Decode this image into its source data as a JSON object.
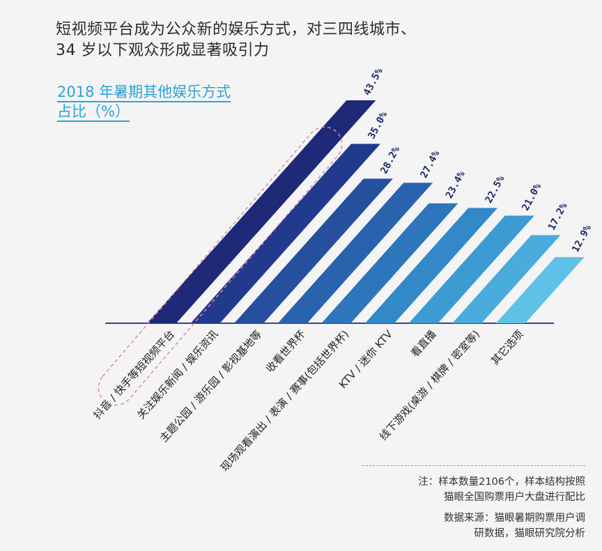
{
  "headline": {
    "line1": "短视频平台成为公众新的娱乐方式，对三四线城市、",
    "line2": "34 岁以下观众形成显著吸引力"
  },
  "chart_data": {
    "type": "bar",
    "title_line1": "2018 年暑期其他娱乐方式",
    "title_line2": "占比（%）",
    "categories": [
      "抖音 / 快手等短视频平台",
      "关注娱乐新闻 / 娱乐资讯",
      "主题公园 / 游乐园 / 影视基地等",
      "收看世界杯",
      "现场观看演出 / 表演 / 赛事(包括世界杯)",
      "KTV / 迷你 KTV",
      "看直播",
      "线下游戏(桌游 / 棋牌 / 密室等)",
      "其它选项"
    ],
    "values": [
      43.5,
      35.0,
      28.2,
      27.4,
      23.4,
      22.5,
      21.0,
      17.2,
      12.9
    ],
    "value_labels": [
      "43.5%",
      "35.0%",
      "28.2%",
      "27.4%",
      "23.4%",
      "22.5%",
      "21.0%",
      "17.2%",
      "12.9%"
    ],
    "colors": [
      "#1e2a78",
      "#223a8e",
      "#26509e",
      "#2a63ad",
      "#2e76bb",
      "#3389c8",
      "#3c9bd3",
      "#49acdd",
      "#5fc0e8"
    ],
    "highlight_color": "#d98aa6",
    "axis_color": "#3a3f8f"
  },
  "notes": {
    "note1": "注：样本数量2106个，样本结构按照",
    "note2": "猫眼全国购票用户大盘进行配比",
    "source1": "数据来源：猫眼暑期购票用户调",
    "source2": "研数据，猫眼研究院分析"
  }
}
